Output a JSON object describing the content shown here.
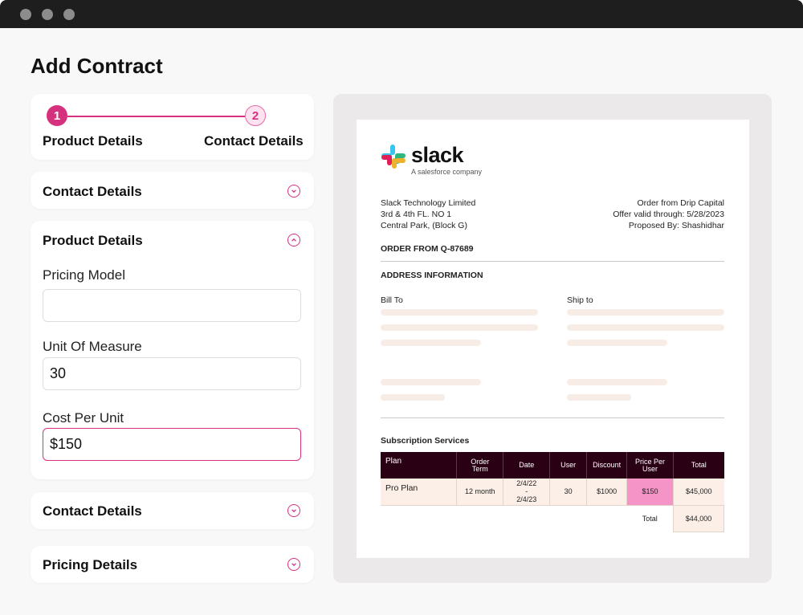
{
  "window": {
    "controls": [
      "close",
      "minimize",
      "maximize"
    ]
  },
  "page": {
    "title": "Add Contract"
  },
  "stepper": {
    "steps": [
      {
        "number": "1",
        "label": "Product Details"
      },
      {
        "number": "2",
        "label": "Contact Details"
      }
    ]
  },
  "sections": {
    "contact_top": {
      "title": "Contact Details",
      "icon": "chevron-down-icon"
    },
    "product": {
      "title": "Product Details",
      "icon": "chevron-up-icon"
    },
    "contact_bottom": {
      "title": "Contact Details",
      "icon": "chevron-down-icon"
    },
    "pricing": {
      "title": "Pricing Details",
      "icon": "chevron-down-icon"
    }
  },
  "form": {
    "pricing_model": {
      "label": "Pricing Model",
      "value": ""
    },
    "unit_of_measure": {
      "label": "Unit Of Measure",
      "value": "30"
    },
    "cost_per_unit": {
      "label": "Cost Per Unit",
      "value": "$150"
    }
  },
  "document": {
    "logo": {
      "name": "slack",
      "tagline": "A salesforce company"
    },
    "company": [
      "Slack Technology Limited",
      "3rd & 4th FL. NO 1",
      "Central Park, (Block G)"
    ],
    "order_info": [
      "Order from Drip Capital",
      "Offer valid through: 5/28/2023",
      "Proposed By: Shashidhar"
    ],
    "order_id": "ORDER FROM Q-87689",
    "address_heading": "ADDRESS INFORMATION",
    "bill_to": "Bill To",
    "ship_to": "Ship to",
    "subscription_heading": "Subscription Services",
    "table": {
      "headers": [
        "Plan",
        "Order Term",
        "Date",
        "User",
        "Discount",
        "Price Per User",
        "Total"
      ],
      "row": {
        "plan": "Pro Plan",
        "term": "12 month",
        "date_start": "2/4/22",
        "date_sep": "-",
        "date_end": "2/4/23",
        "user": "30",
        "discount": "$1000",
        "price": "$150",
        "total": "$45,000"
      },
      "total_label": "Total",
      "total_value": "$44,000"
    }
  },
  "colors": {
    "accent": "#d6317f",
    "accent_light": "#fde2ef",
    "table_header": "#2a0014",
    "table_row": "#fbefe7",
    "price_highlight": "#f494c7"
  }
}
